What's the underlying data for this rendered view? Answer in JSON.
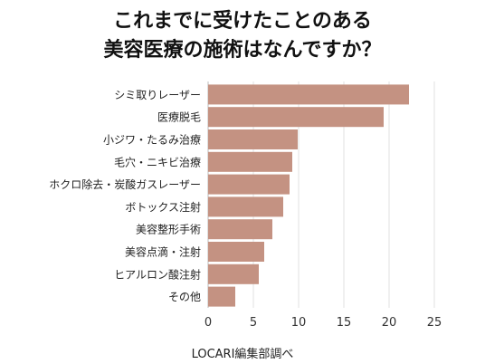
{
  "chart_data": {
    "type": "bar",
    "orientation": "horizontal",
    "title_lines": [
      "これまでに受けたことのある",
      "美容医療の施術はなんですか？"
    ],
    "categories": [
      "シミ取りレーザー",
      "医療脱毛",
      "小ジワ・たるみ治療",
      "毛穴・ニキビ治療",
      "ホクロ除去・炭酸ガスレーザー",
      "ボトックス注射",
      "美容整形手術",
      "美容点滴・注射",
      "ヒアルロン酸注射",
      "その他"
    ],
    "values": [
      22.2,
      19.4,
      9.9,
      9.3,
      9.0,
      8.3,
      7.1,
      6.2,
      5.6,
      3.0
    ],
    "xlim": [
      0,
      25
    ],
    "xticks": [
      0,
      5,
      10,
      15,
      20,
      25
    ],
    "xtick_labels": [
      "0",
      "5",
      "10",
      "15",
      "20",
      "25"
    ],
    "grid": "vertical",
    "bar_color": "#c49282",
    "source": "LOCARI編集部調べ"
  }
}
